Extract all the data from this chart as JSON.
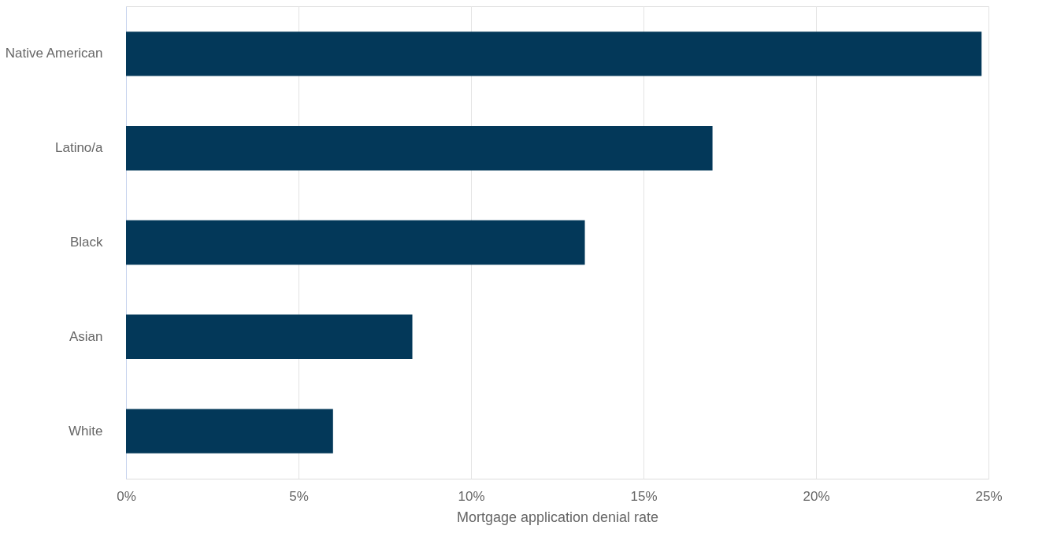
{
  "chart_data": {
    "type": "bar",
    "orientation": "horizontal",
    "xlabel": "Mortgage application denial rate",
    "categories": [
      "Native American",
      "Latino/a",
      "Black",
      "Asian",
      "White"
    ],
    "values": [
      24.8,
      17.0,
      13.3,
      8.3,
      6.0
    ],
    "color": "#033859",
    "xlim": [
      0,
      25
    ],
    "xticks": [
      {
        "value": 0,
        "label": "0%"
      },
      {
        "value": 5,
        "label": "5%"
      },
      {
        "value": 10,
        "label": "10%"
      },
      {
        "value": 15,
        "label": "15%"
      },
      {
        "value": 20,
        "label": "20%"
      },
      {
        "value": 25,
        "label": "25%"
      }
    ],
    "grid": "x"
  }
}
